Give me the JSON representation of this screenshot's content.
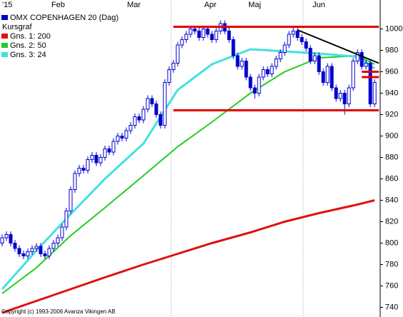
{
  "chart_data": {
    "type": "candlestick",
    "title": "OMX COPENHAGEN 20 (Dag)",
    "legend_heading": "Kursgraf",
    "copyright": "Copyright (c) 1993-2006 Avanza Vikingen AB",
    "color": "#0000cc",
    "ylim": [
      731,
      1027
    ],
    "yticks": [
      740,
      760,
      780,
      800,
      820,
      840,
      860,
      880,
      900,
      920,
      940,
      960,
      980,
      1000
    ],
    "xlim": [
      -0.5,
      88.3
    ],
    "xticks": [
      {
        "value": -0.5,
        "label": "'15"
      },
      {
        "value": 11,
        "label": "Feb"
      },
      {
        "value": 28.7,
        "label": "Mar"
      },
      {
        "value": 46.7,
        "label": "Apr"
      },
      {
        "value": 57,
        "label": "Maj"
      },
      {
        "value": 72,
        "label": "Jun"
      }
    ],
    "vlines": [
      39.5,
      70.3
    ],
    "open": [
      800,
      805,
      808,
      800,
      795,
      790,
      788,
      792,
      795,
      797,
      790,
      788,
      795,
      800,
      805,
      815,
      830,
      850,
      865,
      870,
      868,
      878,
      882,
      875,
      880,
      888,
      885,
      895,
      900,
      898,
      905,
      910,
      918,
      915,
      925,
      935,
      930,
      920,
      910,
      950,
      962,
      968,
      985,
      990,
      995,
      1000,
      998,
      992,
      1000,
      995,
      990,
      998,
      1005,
      998,
      990,
      975,
      965,
      970,
      955,
      945,
      940,
      955,
      962,
      958,
      965,
      972,
      978,
      985,
      995,
      998,
      992,
      988,
      982,
      970,
      975,
      960,
      950,
      965,
      945,
      935,
      940,
      930,
      945,
      970,
      978,
      965,
      968,
      930
    ],
    "high": [
      808,
      811,
      811,
      803,
      798,
      793,
      795,
      798,
      800,
      800,
      793,
      798,
      803,
      808,
      818,
      833,
      853,
      868,
      873,
      873,
      881,
      885,
      885,
      883,
      891,
      891,
      898,
      903,
      903,
      908,
      913,
      921,
      921,
      928,
      938,
      938,
      933,
      923,
      953,
      965,
      971,
      988,
      993,
      998,
      1003,
      1003,
      1001,
      1003,
      1003,
      998,
      1001,
      1008,
      1008,
      1001,
      993,
      978,
      973,
      973,
      958,
      948,
      958,
      965,
      965,
      968,
      975,
      981,
      988,
      998,
      1001,
      1001,
      995,
      991,
      985,
      978,
      978,
      963,
      968,
      968,
      948,
      943,
      943,
      948,
      973,
      981,
      981,
      971,
      971,
      953
    ],
    "low": [
      797,
      802,
      797,
      792,
      787,
      785,
      785,
      789,
      792,
      787,
      785,
      785,
      792,
      797,
      802,
      812,
      827,
      847,
      862,
      865,
      865,
      875,
      872,
      872,
      877,
      882,
      882,
      892,
      895,
      895,
      902,
      907,
      912,
      912,
      922,
      927,
      917,
      907,
      907,
      947,
      959,
      965,
      982,
      987,
      992,
      995,
      989,
      989,
      992,
      987,
      987,
      995,
      995,
      987,
      972,
      962,
      962,
      952,
      942,
      935,
      937,
      952,
      955,
      955,
      962,
      969,
      975,
      982,
      992,
      989,
      985,
      979,
      967,
      967,
      957,
      947,
      947,
      942,
      932,
      932,
      920,
      927,
      942,
      967,
      962,
      962,
      927,
      927
    ],
    "close": [
      805,
      808,
      800,
      795,
      790,
      788,
      792,
      795,
      797,
      790,
      788,
      795,
      800,
      805,
      815,
      830,
      850,
      865,
      870,
      868,
      878,
      882,
      875,
      880,
      888,
      885,
      895,
      900,
      898,
      905,
      910,
      918,
      915,
      925,
      935,
      930,
      920,
      910,
      950,
      962,
      968,
      985,
      990,
      995,
      1000,
      998,
      992,
      1000,
      995,
      990,
      998,
      1005,
      998,
      990,
      975,
      965,
      970,
      955,
      945,
      940,
      955,
      962,
      958,
      965,
      972,
      978,
      985,
      995,
      998,
      992,
      988,
      982,
      970,
      975,
      960,
      950,
      965,
      945,
      935,
      940,
      930,
      945,
      970,
      978,
      965,
      968,
      930,
      950
    ],
    "series": [
      {
        "name": "Gns. 1: 200",
        "color": "#e01010",
        "x": [
          0,
          8,
          16,
          24,
          33,
          41,
          49,
          58,
          66,
          74,
          83,
          87
        ],
        "values": [
          735,
          746,
          757,
          768,
          780,
          790,
          800,
          810,
          820,
          828,
          836,
          840
        ]
      },
      {
        "name": "Gns. 2: 50",
        "color": "#22cc22",
        "x": [
          0,
          8,
          16,
          24,
          33,
          41,
          49,
          58,
          66,
          74,
          83,
          87
        ],
        "values": [
          753,
          777,
          807,
          833,
          863,
          890,
          913,
          940,
          960,
          973,
          975,
          967
        ]
      },
      {
        "name": "Gns. 3: 24",
        "color": "#44e0e0",
        "x": [
          0,
          8,
          16,
          24,
          33,
          41,
          49,
          58,
          66,
          74,
          83,
          87
        ],
        "values": [
          757,
          793,
          827,
          860,
          893,
          943,
          967,
          981,
          979,
          977,
          974,
          963
        ]
      }
    ],
    "hlines": [
      {
        "value": 1002,
        "x": [
          40,
          88
        ],
        "color": "#e00000"
      },
      {
        "value": 924,
        "x": [
          40,
          88
        ],
        "color": "#e00000"
      },
      {
        "value": 960,
        "x": [
          84,
          88
        ],
        "color": "#e00000"
      },
      {
        "value": 955,
        "x": [
          84,
          88
        ],
        "color": "#e00000"
      }
    ],
    "trendline": {
      "x": [
        69,
        88
      ],
      "values": [
        999,
        968
      ],
      "color": "#000000"
    }
  }
}
